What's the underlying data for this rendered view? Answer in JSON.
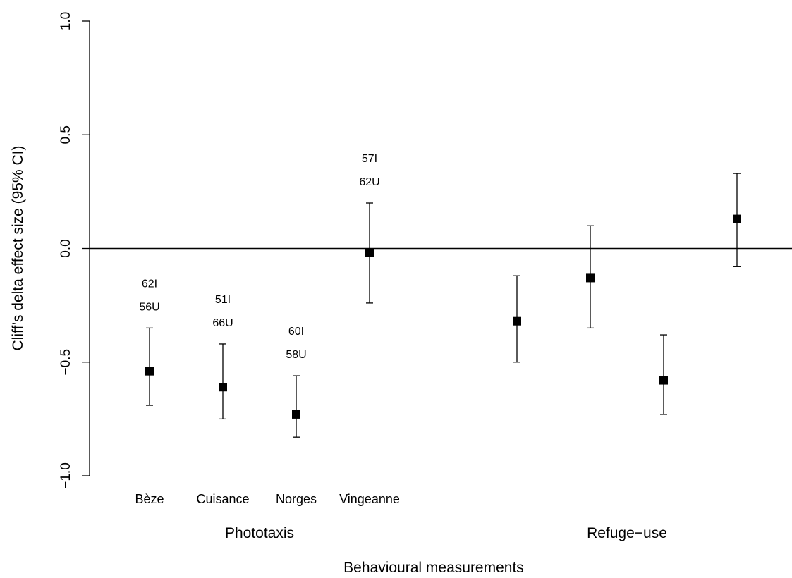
{
  "chart_data": {
    "type": "scatter",
    "ylabel": "Cliff’s delta effect size (95% CI)",
    "xlabel": "Behavioural measurements",
    "ylim": [
      -1.0,
      1.0
    ],
    "yticks": [
      "−1.0",
      "−0.5",
      "0.0",
      "0.5",
      "1.0"
    ],
    "ytick_values": [
      -1.0,
      -0.5,
      0.0,
      0.5,
      1.0
    ],
    "reference_line": 0.0,
    "groups": [
      "Phototaxis",
      "Refuge−use"
    ],
    "categories": [
      "Bèze",
      "Cuisance",
      "Norges",
      "Vingeanne",
      "",
      "",
      "",
      ""
    ],
    "points": [
      {
        "group": 0,
        "y": -0.54,
        "lower": -0.69,
        "upper": -0.35,
        "n_top": "62I",
        "n_bottom": "56U"
      },
      {
        "group": 0,
        "y": -0.61,
        "lower": -0.75,
        "upper": -0.42,
        "n_top": "51I",
        "n_bottom": "66U"
      },
      {
        "group": 0,
        "y": -0.73,
        "lower": -0.83,
        "upper": -0.56,
        "n_top": "60I",
        "n_bottom": "58U"
      },
      {
        "group": 0,
        "y": -0.02,
        "lower": -0.24,
        "upper": 0.2,
        "n_top": "57I",
        "n_bottom": "62U"
      },
      {
        "group": 1,
        "y": -0.32,
        "lower": -0.5,
        "upper": -0.12,
        "n_top": "",
        "n_bottom": ""
      },
      {
        "group": 1,
        "y": -0.13,
        "lower": -0.35,
        "upper": 0.1,
        "n_top": "",
        "n_bottom": ""
      },
      {
        "group": 1,
        "y": -0.58,
        "lower": -0.73,
        "upper": -0.38,
        "n_top": "",
        "n_bottom": ""
      },
      {
        "group": 1,
        "y": 0.13,
        "lower": -0.08,
        "upper": 0.33,
        "n_top": "",
        "n_bottom": ""
      }
    ]
  }
}
